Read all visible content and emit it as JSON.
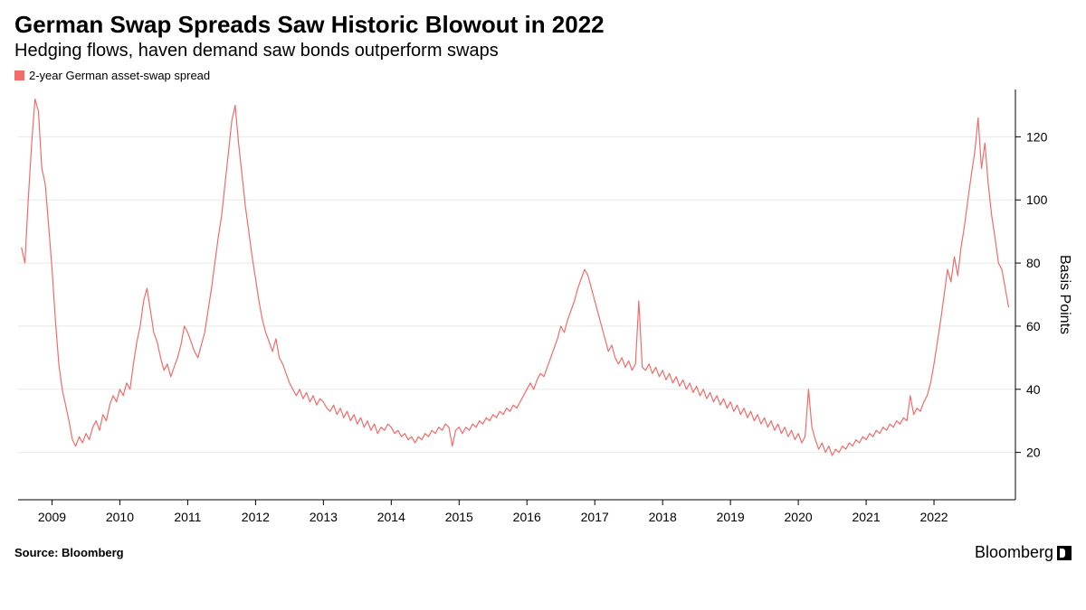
{
  "title": "German Swap Spreads Saw Historic Blowout in 2022",
  "subtitle": "Hedging flows, haven demand saw bonds outperform swaps",
  "legend": {
    "label": "2-year German asset-swap spread",
    "color": "#f46b6b"
  },
  "chart": {
    "type": "line",
    "line_color": "#f46b6b",
    "line_width": 1.2,
    "background_color": "#ffffff",
    "grid_color": "#e8e8e8",
    "axis_color": "#000000",
    "tick_color": "#000000",
    "tick_fontsize": 14,
    "y_axis": {
      "label": "Basis Points",
      "label_fontsize": 16,
      "side": "right",
      "ylim": [
        5,
        135
      ],
      "ticks": [
        20,
        40,
        60,
        80,
        100,
        120
      ]
    },
    "x_axis": {
      "range_years": [
        2008.5,
        2023.2
      ],
      "ticks": [
        2009,
        2010,
        2011,
        2012,
        2013,
        2014,
        2015,
        2016,
        2017,
        2018,
        2019,
        2020,
        2021,
        2022
      ]
    },
    "series": [
      {
        "x": 2008.55,
        "y": 85
      },
      {
        "x": 2008.6,
        "y": 80
      },
      {
        "x": 2008.65,
        "y": 100
      },
      {
        "x": 2008.7,
        "y": 118
      },
      {
        "x": 2008.75,
        "y": 132
      },
      {
        "x": 2008.8,
        "y": 128
      },
      {
        "x": 2008.85,
        "y": 110
      },
      {
        "x": 2008.9,
        "y": 105
      },
      {
        "x": 2008.95,
        "y": 92
      },
      {
        "x": 2009.0,
        "y": 78
      },
      {
        "x": 2009.05,
        "y": 62
      },
      {
        "x": 2009.1,
        "y": 48
      },
      {
        "x": 2009.15,
        "y": 40
      },
      {
        "x": 2009.2,
        "y": 35
      },
      {
        "x": 2009.25,
        "y": 30
      },
      {
        "x": 2009.3,
        "y": 24
      },
      {
        "x": 2009.35,
        "y": 22
      },
      {
        "x": 2009.4,
        "y": 25
      },
      {
        "x": 2009.45,
        "y": 23
      },
      {
        "x": 2009.5,
        "y": 26
      },
      {
        "x": 2009.55,
        "y": 24
      },
      {
        "x": 2009.6,
        "y": 28
      },
      {
        "x": 2009.65,
        "y": 30
      },
      {
        "x": 2009.7,
        "y": 27
      },
      {
        "x": 2009.75,
        "y": 32
      },
      {
        "x": 2009.8,
        "y": 30
      },
      {
        "x": 2009.85,
        "y": 35
      },
      {
        "x": 2009.9,
        "y": 38
      },
      {
        "x": 2009.95,
        "y": 36
      },
      {
        "x": 2010.0,
        "y": 40
      },
      {
        "x": 2010.05,
        "y": 38
      },
      {
        "x": 2010.1,
        "y": 42
      },
      {
        "x": 2010.15,
        "y": 40
      },
      {
        "x": 2010.2,
        "y": 48
      },
      {
        "x": 2010.25,
        "y": 55
      },
      {
        "x": 2010.3,
        "y": 60
      },
      {
        "x": 2010.35,
        "y": 68
      },
      {
        "x": 2010.4,
        "y": 72
      },
      {
        "x": 2010.45,
        "y": 65
      },
      {
        "x": 2010.5,
        "y": 58
      },
      {
        "x": 2010.55,
        "y": 55
      },
      {
        "x": 2010.6,
        "y": 50
      },
      {
        "x": 2010.65,
        "y": 46
      },
      {
        "x": 2010.7,
        "y": 48
      },
      {
        "x": 2010.75,
        "y": 44
      },
      {
        "x": 2010.8,
        "y": 47
      },
      {
        "x": 2010.85,
        "y": 50
      },
      {
        "x": 2010.9,
        "y": 54
      },
      {
        "x": 2010.95,
        "y": 60
      },
      {
        "x": 2011.0,
        "y": 58
      },
      {
        "x": 2011.05,
        "y": 55
      },
      {
        "x": 2011.1,
        "y": 52
      },
      {
        "x": 2011.15,
        "y": 50
      },
      {
        "x": 2011.2,
        "y": 54
      },
      {
        "x": 2011.25,
        "y": 58
      },
      {
        "x": 2011.3,
        "y": 65
      },
      {
        "x": 2011.35,
        "y": 72
      },
      {
        "x": 2011.4,
        "y": 80
      },
      {
        "x": 2011.45,
        "y": 88
      },
      {
        "x": 2011.5,
        "y": 95
      },
      {
        "x": 2011.55,
        "y": 105
      },
      {
        "x": 2011.6,
        "y": 115
      },
      {
        "x": 2011.65,
        "y": 125
      },
      {
        "x": 2011.7,
        "y": 130
      },
      {
        "x": 2011.75,
        "y": 118
      },
      {
        "x": 2011.8,
        "y": 108
      },
      {
        "x": 2011.85,
        "y": 98
      },
      {
        "x": 2011.9,
        "y": 90
      },
      {
        "x": 2011.95,
        "y": 82
      },
      {
        "x": 2012.0,
        "y": 75
      },
      {
        "x": 2012.05,
        "y": 68
      },
      {
        "x": 2012.1,
        "y": 62
      },
      {
        "x": 2012.15,
        "y": 58
      },
      {
        "x": 2012.2,
        "y": 55
      },
      {
        "x": 2012.25,
        "y": 52
      },
      {
        "x": 2012.3,
        "y": 56
      },
      {
        "x": 2012.35,
        "y": 50
      },
      {
        "x": 2012.4,
        "y": 48
      },
      {
        "x": 2012.45,
        "y": 45
      },
      {
        "x": 2012.5,
        "y": 42
      },
      {
        "x": 2012.55,
        "y": 40
      },
      {
        "x": 2012.6,
        "y": 38
      },
      {
        "x": 2012.65,
        "y": 40
      },
      {
        "x": 2012.7,
        "y": 37
      },
      {
        "x": 2012.75,
        "y": 39
      },
      {
        "x": 2012.8,
        "y": 36
      },
      {
        "x": 2012.85,
        "y": 38
      },
      {
        "x": 2012.9,
        "y": 35
      },
      {
        "x": 2012.95,
        "y": 37
      },
      {
        "x": 2013.0,
        "y": 36
      },
      {
        "x": 2013.05,
        "y": 34
      },
      {
        "x": 2013.1,
        "y": 33
      },
      {
        "x": 2013.15,
        "y": 35
      },
      {
        "x": 2013.2,
        "y": 32
      },
      {
        "x": 2013.25,
        "y": 34
      },
      {
        "x": 2013.3,
        "y": 31
      },
      {
        "x": 2013.35,
        "y": 33
      },
      {
        "x": 2013.4,
        "y": 30
      },
      {
        "x": 2013.45,
        "y": 32
      },
      {
        "x": 2013.5,
        "y": 29
      },
      {
        "x": 2013.55,
        "y": 31
      },
      {
        "x": 2013.6,
        "y": 28
      },
      {
        "x": 2013.65,
        "y": 30
      },
      {
        "x": 2013.7,
        "y": 27
      },
      {
        "x": 2013.75,
        "y": 29
      },
      {
        "x": 2013.8,
        "y": 26
      },
      {
        "x": 2013.85,
        "y": 28
      },
      {
        "x": 2013.9,
        "y": 27
      },
      {
        "x": 2013.95,
        "y": 29
      },
      {
        "x": 2014.0,
        "y": 28
      },
      {
        "x": 2014.05,
        "y": 26
      },
      {
        "x": 2014.1,
        "y": 27
      },
      {
        "x": 2014.15,
        "y": 25
      },
      {
        "x": 2014.2,
        "y": 26
      },
      {
        "x": 2014.25,
        "y": 24
      },
      {
        "x": 2014.3,
        "y": 25
      },
      {
        "x": 2014.35,
        "y": 23
      },
      {
        "x": 2014.4,
        "y": 25
      },
      {
        "x": 2014.45,
        "y": 24
      },
      {
        "x": 2014.5,
        "y": 26
      },
      {
        "x": 2014.55,
        "y": 25
      },
      {
        "x": 2014.6,
        "y": 27
      },
      {
        "x": 2014.65,
        "y": 26
      },
      {
        "x": 2014.7,
        "y": 28
      },
      {
        "x": 2014.75,
        "y": 27
      },
      {
        "x": 2014.8,
        "y": 29
      },
      {
        "x": 2014.85,
        "y": 28
      },
      {
        "x": 2014.9,
        "y": 22
      },
      {
        "x": 2014.95,
        "y": 27
      },
      {
        "x": 2015.0,
        "y": 28
      },
      {
        "x": 2015.05,
        "y": 26
      },
      {
        "x": 2015.1,
        "y": 28
      },
      {
        "x": 2015.15,
        "y": 27
      },
      {
        "x": 2015.2,
        "y": 29
      },
      {
        "x": 2015.25,
        "y": 28
      },
      {
        "x": 2015.3,
        "y": 30
      },
      {
        "x": 2015.35,
        "y": 29
      },
      {
        "x": 2015.4,
        "y": 31
      },
      {
        "x": 2015.45,
        "y": 30
      },
      {
        "x": 2015.5,
        "y": 32
      },
      {
        "x": 2015.55,
        "y": 31
      },
      {
        "x": 2015.6,
        "y": 33
      },
      {
        "x": 2015.65,
        "y": 32
      },
      {
        "x": 2015.7,
        "y": 34
      },
      {
        "x": 2015.75,
        "y": 33
      },
      {
        "x": 2015.8,
        "y": 35
      },
      {
        "x": 2015.85,
        "y": 34
      },
      {
        "x": 2015.9,
        "y": 36
      },
      {
        "x": 2015.95,
        "y": 38
      },
      {
        "x": 2016.0,
        "y": 40
      },
      {
        "x": 2016.05,
        "y": 42
      },
      {
        "x": 2016.1,
        "y": 40
      },
      {
        "x": 2016.15,
        "y": 43
      },
      {
        "x": 2016.2,
        "y": 45
      },
      {
        "x": 2016.25,
        "y": 44
      },
      {
        "x": 2016.3,
        "y": 47
      },
      {
        "x": 2016.35,
        "y": 50
      },
      {
        "x": 2016.4,
        "y": 53
      },
      {
        "x": 2016.45,
        "y": 56
      },
      {
        "x": 2016.5,
        "y": 60
      },
      {
        "x": 2016.55,
        "y": 58
      },
      {
        "x": 2016.6,
        "y": 62
      },
      {
        "x": 2016.65,
        "y": 65
      },
      {
        "x": 2016.7,
        "y": 68
      },
      {
        "x": 2016.75,
        "y": 72
      },
      {
        "x": 2016.8,
        "y": 75
      },
      {
        "x": 2016.85,
        "y": 78
      },
      {
        "x": 2016.9,
        "y": 76
      },
      {
        "x": 2016.95,
        "y": 72
      },
      {
        "x": 2017.0,
        "y": 68
      },
      {
        "x": 2017.05,
        "y": 64
      },
      {
        "x": 2017.1,
        "y": 60
      },
      {
        "x": 2017.15,
        "y": 56
      },
      {
        "x": 2017.2,
        "y": 52
      },
      {
        "x": 2017.25,
        "y": 54
      },
      {
        "x": 2017.3,
        "y": 50
      },
      {
        "x": 2017.35,
        "y": 48
      },
      {
        "x": 2017.4,
        "y": 50
      },
      {
        "x": 2017.45,
        "y": 47
      },
      {
        "x": 2017.5,
        "y": 49
      },
      {
        "x": 2017.55,
        "y": 46
      },
      {
        "x": 2017.6,
        "y": 48
      },
      {
        "x": 2017.65,
        "y": 68
      },
      {
        "x": 2017.7,
        "y": 47
      },
      {
        "x": 2017.75,
        "y": 46
      },
      {
        "x": 2017.8,
        "y": 48
      },
      {
        "x": 2017.85,
        "y": 45
      },
      {
        "x": 2017.9,
        "y": 47
      },
      {
        "x": 2017.95,
        "y": 44
      },
      {
        "x": 2018.0,
        "y": 46
      },
      {
        "x": 2018.05,
        "y": 43
      },
      {
        "x": 2018.1,
        "y": 45
      },
      {
        "x": 2018.15,
        "y": 42
      },
      {
        "x": 2018.2,
        "y": 44
      },
      {
        "x": 2018.25,
        "y": 41
      },
      {
        "x": 2018.3,
        "y": 43
      },
      {
        "x": 2018.35,
        "y": 40
      },
      {
        "x": 2018.4,
        "y": 42
      },
      {
        "x": 2018.45,
        "y": 39
      },
      {
        "x": 2018.5,
        "y": 41
      },
      {
        "x": 2018.55,
        "y": 38
      },
      {
        "x": 2018.6,
        "y": 40
      },
      {
        "x": 2018.65,
        "y": 37
      },
      {
        "x": 2018.7,
        "y": 39
      },
      {
        "x": 2018.75,
        "y": 36
      },
      {
        "x": 2018.8,
        "y": 38
      },
      {
        "x": 2018.85,
        "y": 35
      },
      {
        "x": 2018.9,
        "y": 37
      },
      {
        "x": 2018.95,
        "y": 34
      },
      {
        "x": 2019.0,
        "y": 36
      },
      {
        "x": 2019.05,
        "y": 33
      },
      {
        "x": 2019.1,
        "y": 35
      },
      {
        "x": 2019.15,
        "y": 32
      },
      {
        "x": 2019.2,
        "y": 34
      },
      {
        "x": 2019.25,
        "y": 31
      },
      {
        "x": 2019.3,
        "y": 33
      },
      {
        "x": 2019.35,
        "y": 30
      },
      {
        "x": 2019.4,
        "y": 32
      },
      {
        "x": 2019.45,
        "y": 29
      },
      {
        "x": 2019.5,
        "y": 31
      },
      {
        "x": 2019.55,
        "y": 28
      },
      {
        "x": 2019.6,
        "y": 30
      },
      {
        "x": 2019.65,
        "y": 27
      },
      {
        "x": 2019.7,
        "y": 29
      },
      {
        "x": 2019.75,
        "y": 26
      },
      {
        "x": 2019.8,
        "y": 28
      },
      {
        "x": 2019.85,
        "y": 25
      },
      {
        "x": 2019.9,
        "y": 27
      },
      {
        "x": 2019.95,
        "y": 24
      },
      {
        "x": 2020.0,
        "y": 26
      },
      {
        "x": 2020.05,
        "y": 23
      },
      {
        "x": 2020.1,
        "y": 25
      },
      {
        "x": 2020.15,
        "y": 40
      },
      {
        "x": 2020.2,
        "y": 28
      },
      {
        "x": 2020.25,
        "y": 24
      },
      {
        "x": 2020.3,
        "y": 21
      },
      {
        "x": 2020.35,
        "y": 23
      },
      {
        "x": 2020.4,
        "y": 20
      },
      {
        "x": 2020.45,
        "y": 22
      },
      {
        "x": 2020.5,
        "y": 19
      },
      {
        "x": 2020.55,
        "y": 21
      },
      {
        "x": 2020.6,
        "y": 20
      },
      {
        "x": 2020.65,
        "y": 22
      },
      {
        "x": 2020.7,
        "y": 21
      },
      {
        "x": 2020.75,
        "y": 23
      },
      {
        "x": 2020.8,
        "y": 22
      },
      {
        "x": 2020.85,
        "y": 24
      },
      {
        "x": 2020.9,
        "y": 23
      },
      {
        "x": 2020.95,
        "y": 25
      },
      {
        "x": 2021.0,
        "y": 24
      },
      {
        "x": 2021.05,
        "y": 26
      },
      {
        "x": 2021.1,
        "y": 25
      },
      {
        "x": 2021.15,
        "y": 27
      },
      {
        "x": 2021.2,
        "y": 26
      },
      {
        "x": 2021.25,
        "y": 28
      },
      {
        "x": 2021.3,
        "y": 27
      },
      {
        "x": 2021.35,
        "y": 29
      },
      {
        "x": 2021.4,
        "y": 28
      },
      {
        "x": 2021.45,
        "y": 30
      },
      {
        "x": 2021.5,
        "y": 29
      },
      {
        "x": 2021.55,
        "y": 31
      },
      {
        "x": 2021.6,
        "y": 30
      },
      {
        "x": 2021.65,
        "y": 38
      },
      {
        "x": 2021.7,
        "y": 32
      },
      {
        "x": 2021.75,
        "y": 34
      },
      {
        "x": 2021.8,
        "y": 33
      },
      {
        "x": 2021.85,
        "y": 36
      },
      {
        "x": 2021.9,
        "y": 38
      },
      {
        "x": 2021.95,
        "y": 42
      },
      {
        "x": 2022.0,
        "y": 48
      },
      {
        "x": 2022.05,
        "y": 55
      },
      {
        "x": 2022.1,
        "y": 62
      },
      {
        "x": 2022.15,
        "y": 70
      },
      {
        "x": 2022.2,
        "y": 78
      },
      {
        "x": 2022.25,
        "y": 74
      },
      {
        "x": 2022.3,
        "y": 82
      },
      {
        "x": 2022.35,
        "y": 76
      },
      {
        "x": 2022.4,
        "y": 85
      },
      {
        "x": 2022.45,
        "y": 92
      },
      {
        "x": 2022.5,
        "y": 100
      },
      {
        "x": 2022.55,
        "y": 108
      },
      {
        "x": 2022.6,
        "y": 115
      },
      {
        "x": 2022.65,
        "y": 126
      },
      {
        "x": 2022.7,
        "y": 110
      },
      {
        "x": 2022.75,
        "y": 118
      },
      {
        "x": 2022.8,
        "y": 105
      },
      {
        "x": 2022.85,
        "y": 95
      },
      {
        "x": 2022.9,
        "y": 88
      },
      {
        "x": 2022.95,
        "y": 80
      },
      {
        "x": 2023.0,
        "y": 78
      },
      {
        "x": 2023.05,
        "y": 72
      },
      {
        "x": 2023.1,
        "y": 66
      }
    ]
  },
  "source": "Source: Bloomberg",
  "brand": "Bloomberg"
}
